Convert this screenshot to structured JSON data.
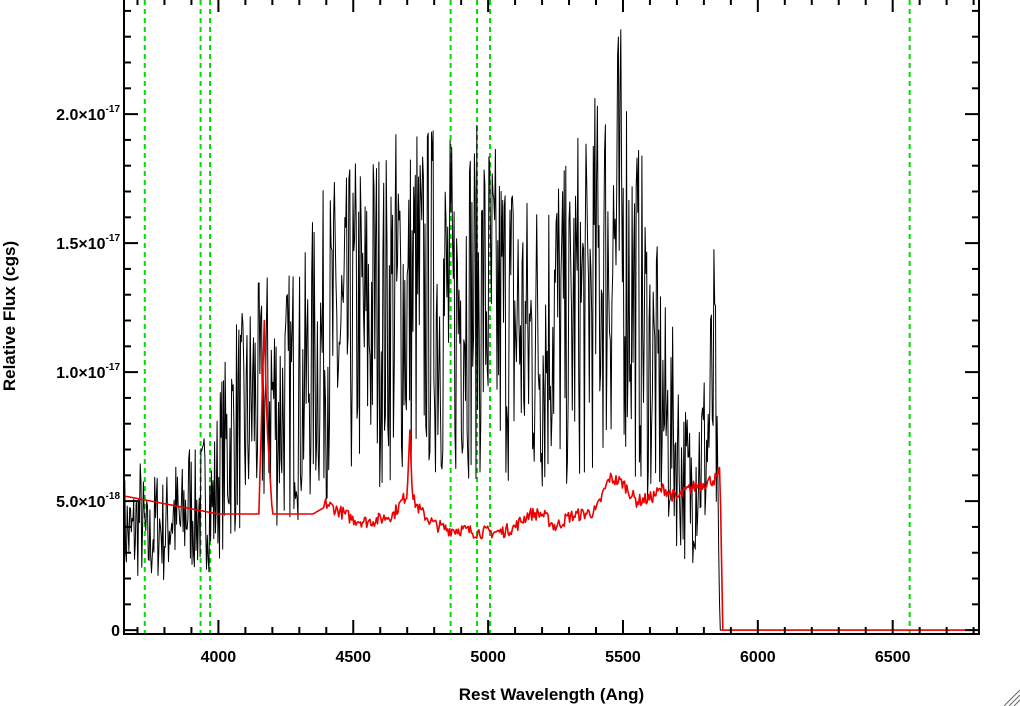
{
  "chart_data": {
    "type": "line",
    "xlabel": "Rest Wavelength (Ang)",
    "ylabel": "Relative Flux (cgs)",
    "xlim": [
      3650,
      6820
    ],
    "ylim": [
      -1.5e-19,
      2.45e-17
    ],
    "x_ticks": [
      {
        "value": 4000,
        "label": "4000"
      },
      {
        "value": 4500,
        "label": "4500"
      },
      {
        "value": 5000,
        "label": "5000"
      },
      {
        "value": 5500,
        "label": "5500"
      },
      {
        "value": 6000,
        "label": "6000"
      },
      {
        "value": 6500,
        "label": "6500"
      }
    ],
    "y_ticks": [
      {
        "value": 0,
        "mantissa": "0",
        "exponent": ""
      },
      {
        "value": 5e-18,
        "mantissa": "5.0×10",
        "exponent": "-18"
      },
      {
        "value": 1e-17,
        "mantissa": "1.0×10",
        "exponent": "-17"
      },
      {
        "value": 1.5e-17,
        "mantissa": "1.5×10",
        "exponent": "-17"
      },
      {
        "value": 2e-17,
        "mantissa": "2.0×10",
        "exponent": "-17"
      }
    ],
    "reference_lines": [
      {
        "x": 3727,
        "color": "#00dd00",
        "style": "dashed"
      },
      {
        "x": 3934,
        "color": "#00dd00",
        "style": "dashed"
      },
      {
        "x": 3969,
        "color": "#00dd00",
        "style": "dashed"
      },
      {
        "x": 4861,
        "color": "#00dd00",
        "style": "dashed"
      },
      {
        "x": 4959,
        "color": "#00dd00",
        "style": "dashed"
      },
      {
        "x": 5007,
        "color": "#00dd00",
        "style": "dashed"
      },
      {
        "x": 6563,
        "color": "#00dd00",
        "style": "dashed"
      }
    ],
    "series": [
      {
        "color": "#000000",
        "note_unlabeled": true,
        "x": [
          3650,
          3680,
          3710,
          3740,
          3770,
          3800,
          3830,
          3860,
          3890,
          3920,
          3950,
          3980,
          4010,
          4040,
          4070,
          4100,
          4130,
          4160,
          4190,
          4220,
          4250,
          4280,
          4310,
          4340,
          4370,
          4400,
          4430,
          4460,
          4490,
          4520,
          4550,
          4580,
          4610,
          4640,
          4670,
          4700,
          4730,
          4760,
          4790,
          4820,
          4850,
          4880,
          4910,
          4940,
          4970,
          5000,
          5030,
          5060,
          5090,
          5120,
          5150,
          5180,
          5210,
          5240,
          5270,
          5300,
          5330,
          5360,
          5390,
          5420,
          5450,
          5480,
          5510,
          5540,
          5570,
          5600,
          5630,
          5660,
          5690,
          5720,
          5750,
          5780,
          5810,
          5840,
          5860,
          5870,
          5900,
          6000,
          6200,
          6400,
          6600,
          6820
        ],
        "y": [
          4e-18,
          3.6e-18,
          4.4e-18,
          3.2e-18,
          4.2e-18,
          3.8e-18,
          4.6e-18,
          4e-18,
          5e-18,
          4.4e-18,
          5.2e-18,
          4.8e-18,
          6.5e-18,
          7.2e-18,
          8.2e-18,
          7.8e-18,
          9e-18,
          8.6e-18,
          9.4e-18,
          8.4e-18,
          8.8e-18,
          9.6e-18,
          9e-18,
          1.02e-17,
          1.08e-17,
          1.12e-17,
          1.15e-17,
          1.1e-17,
          1.18e-17,
          1.22e-17,
          1.15e-17,
          1.28e-17,
          1.2e-17,
          1.25e-17,
          1.3e-17,
          1.22e-17,
          1.32e-17,
          1.26e-17,
          1.3e-17,
          1.24e-17,
          1.28e-17,
          1.2e-17,
          1.34e-17,
          1.28e-17,
          1.26e-17,
          1.3e-17,
          1.22e-17,
          1.24e-17,
          1.2e-17,
          1.18e-17,
          1.1e-17,
          1.14e-17,
          1.08e-17,
          1.26e-17,
          1.2e-17,
          1.14e-17,
          1.28e-17,
          1.22e-17,
          1.34e-17,
          1.4e-17,
          1.45e-17,
          1.55e-17,
          1.48e-17,
          1.3e-17,
          1.2e-17,
          1.05e-17,
          9.5e-18,
          8e-18,
          7.5e-18,
          6e-18,
          5.5e-18,
          6.5e-18,
          7e-18,
          1e-17,
          0,
          0,
          0,
          0,
          0,
          0,
          0,
          0
        ]
      },
      {
        "color": "#ee0000",
        "note_unlabeled": true,
        "x": [
          3650,
          3700,
          3750,
          3800,
          3850,
          3900,
          3950,
          4000,
          4050,
          4100,
          4150,
          4170,
          4180,
          4200,
          4250,
          4300,
          4350,
          4400,
          4450,
          4500,
          4550,
          4600,
          4650,
          4700,
          4710,
          4720,
          4750,
          4800,
          4850,
          4900,
          4950,
          5000,
          5050,
          5100,
          5150,
          5200,
          5250,
          5300,
          5350,
          5400,
          5450,
          5500,
          5550,
          5600,
          5650,
          5700,
          5750,
          5800,
          5850,
          5860,
          5870,
          5900,
          6000,
          6200,
          6400,
          6600,
          6820
        ],
        "y": [
          5.2e-18,
          5.1e-18,
          5e-18,
          4.9e-18,
          4.8e-18,
          4.7e-18,
          4.6e-18,
          4.5e-18,
          4.5e-18,
          4.5e-18,
          4.5e-18,
          1.2e-17,
          8e-18,
          4.5e-18,
          4.5e-18,
          4.5e-18,
          4.5e-18,
          4.8e-18,
          4.5e-18,
          4.2e-18,
          4.1e-18,
          4.2e-18,
          4.4e-18,
          5.2e-18,
          7.8e-18,
          5e-18,
          4.5e-18,
          4e-18,
          3.8e-18,
          3.8e-18,
          3.7e-18,
          3.7e-18,
          3.7e-18,
          3.9e-18,
          4.4e-18,
          4.4e-18,
          3.9e-18,
          4.3e-18,
          4.4e-18,
          4.5e-18,
          5.8e-18,
          5.6e-18,
          4.9e-18,
          5e-18,
          5.4e-18,
          5e-18,
          5.4e-18,
          5.6e-18,
          5.8e-18,
          6e-18,
          0,
          0,
          0,
          0,
          0,
          0,
          0
        ]
      }
    ]
  }
}
